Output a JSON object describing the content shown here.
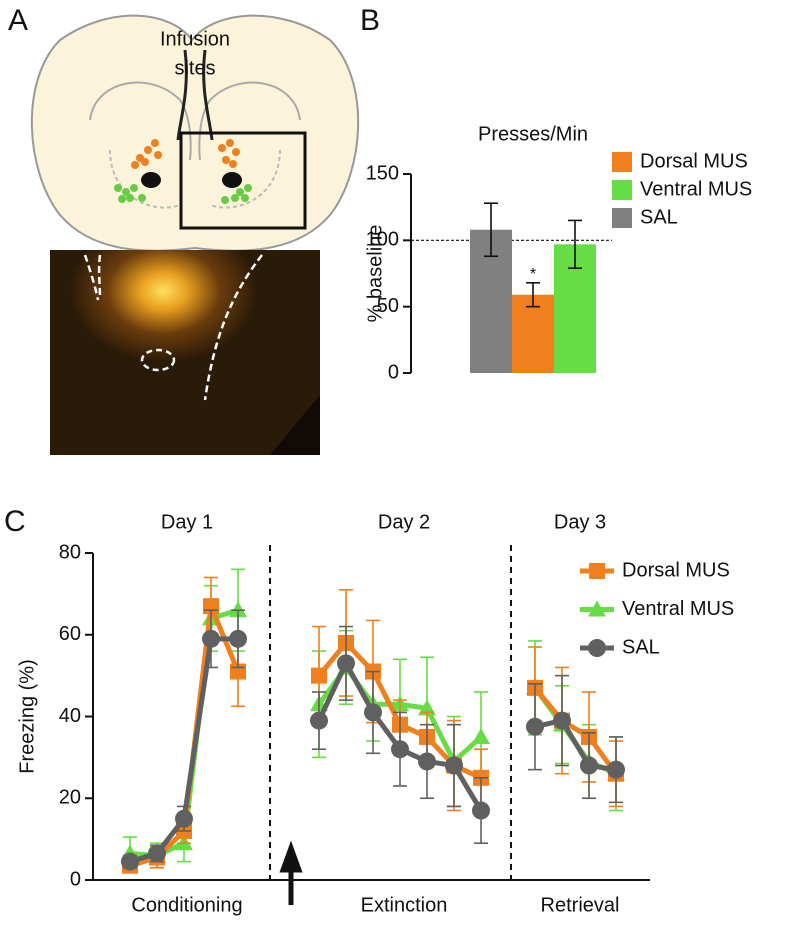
{
  "panels": {
    "a": {
      "letter": "A",
      "caption": [
        "Infusion",
        "sites"
      ]
    }
  },
  "chart_data": [
    {
      "type": "bar",
      "panel": "B",
      "title": "Presses/Min",
      "y_label": "% baseline",
      "ylim": [
        0,
        150
      ],
      "yticks": [
        0,
        50,
        100,
        150
      ],
      "reference_line": 100,
      "series": [
        {
          "name": "Dorsal MUS",
          "color": "#f07f1e",
          "values": [
            59
          ],
          "errors": [
            9
          ],
          "annotation": "*"
        },
        {
          "name": "Ventral MUS",
          "color": "#66dd44",
          "values": [
            97
          ],
          "errors": [
            18
          ]
        },
        {
          "name": "SAL",
          "color": "#808080",
          "values": [
            108
          ],
          "errors": [
            20
          ]
        }
      ]
    },
    {
      "type": "line",
      "panel": "C",
      "y_label": "Freezing (%)",
      "ylim": [
        0,
        80
      ],
      "yticks": [
        0,
        20,
        40,
        60,
        80
      ],
      "groups": [
        {
          "title": "Day 1",
          "label": "Conditioning"
        },
        {
          "title": "Day 2",
          "label": "Extinction"
        },
        {
          "title": "Day 3",
          "label": "Retrieval"
        }
      ],
      "categories": [
        null,
        null,
        null,
        null,
        null,
        null,
        null,
        null,
        null,
        null,
        null,
        null,
        null,
        null,
        null,
        null,
        null,
        null,
        null
      ],
      "series": [
        {
          "name": "Dorsal MUS",
          "color": "#f07f1e",
          "marker": "square",
          "values": [
            3.5,
            5.5,
            12,
            67,
            51,
            null,
            null,
            50,
            58,
            51,
            38,
            35,
            28,
            25,
            null,
            47,
            39,
            35,
            26
          ],
          "errors": [
            1.5,
            2.5,
            3,
            7,
            8.5,
            null,
            null,
            12,
            13,
            12.5,
            6,
            6,
            11,
            7,
            null,
            10,
            13,
            11,
            8
          ]
        },
        {
          "name": "Ventral MUS",
          "color": "#66dd44",
          "marker": "triangle",
          "values": [
            6.5,
            6,
            9,
            64,
            66,
            null,
            null,
            43,
            52,
            43,
            43,
            42,
            29,
            35,
            null,
            47,
            38,
            29,
            26
          ],
          "errors": [
            4,
            3,
            4.5,
            8,
            10,
            null,
            null,
            13,
            9,
            9,
            11,
            12.5,
            11,
            11,
            null,
            11.5,
            9.5,
            9,
            9
          ]
        },
        {
          "name": "SAL",
          "color": "#606060",
          "marker": "circle",
          "values": [
            4.5,
            6.5,
            15,
            59,
            59,
            null,
            null,
            39,
            53,
            41,
            32,
            29,
            28,
            17,
            null,
            37.5,
            39,
            28,
            27
          ],
          "errors": [
            1.5,
            2,
            3,
            7,
            7,
            null,
            null,
            7,
            9,
            10,
            9,
            9,
            10,
            8,
            null,
            10.5,
            11,
            8,
            8
          ]
        }
      ]
    }
  ]
}
